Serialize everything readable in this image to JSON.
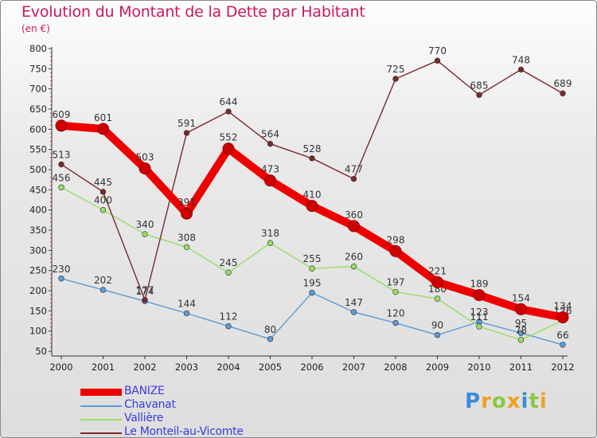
{
  "title": "Evolution du Montant de la Dette par Habitant",
  "unit_label": "(en €)",
  "brand": {
    "letters": [
      "P",
      "r",
      "o",
      "x",
      "i",
      "t",
      "i"
    ],
    "colors": [
      "#3a8ed8",
      "#f0a020",
      "#8cc63f",
      "#f0a020",
      "#3a8ed8",
      "#8cc63f",
      "#f0a020"
    ]
  },
  "chart_data": {
    "type": "line",
    "title": "Evolution du Montant de la Dette par Habitant",
    "ylabel": "(en €)",
    "xlabel": "",
    "x": [
      "2000",
      "2001",
      "2002",
      "2003",
      "2004",
      "2005",
      "2006",
      "2007",
      "2008",
      "2009",
      "2010",
      "2011",
      "2012"
    ],
    "ylim": [
      50,
      800
    ],
    "yticks": [
      50,
      100,
      150,
      200,
      250,
      300,
      350,
      400,
      450,
      500,
      550,
      600,
      650,
      700,
      750,
      800
    ],
    "grid": false,
    "legend_position": "bottom-left",
    "series": [
      {
        "name": "BANIZE",
        "color": "#ee0000",
        "emphasis": true,
        "values": [
          609,
          601,
          503,
          391,
          552,
          473,
          410,
          360,
          298,
          221,
          189,
          154,
          134
        ],
        "labels": [
          "609",
          "601",
          "503",
          "391",
          "552",
          "473",
          "410",
          "360",
          "298",
          "221",
          "189",
          "154",
          "134"
        ]
      },
      {
        "name": "Chavanat",
        "color": "#5b9bd5",
        "emphasis": false,
        "values": [
          230,
          202,
          174,
          144,
          112,
          80,
          195,
          147,
          120,
          90,
          123,
          95,
          66
        ],
        "labels": [
          "230",
          "202",
          "174",
          "144",
          "112",
          "80",
          "195",
          "147",
          "120",
          "90",
          "123",
          "95",
          "66"
        ]
      },
      {
        "name": "Vallière",
        "color": "#99dd66",
        "emphasis": false,
        "values": [
          456,
          400,
          340,
          308,
          245,
          318,
          255,
          260,
          197,
          180,
          111,
          78,
          126
        ],
        "labels": [
          "456",
          "400",
          "340",
          "308",
          "245",
          "318",
          "255",
          "260",
          "197",
          "180",
          "111",
          "78",
          "126"
        ]
      },
      {
        "name": "Le Monteil-au-Vicomte",
        "color": "#7a2a2a",
        "emphasis": false,
        "values": [
          513,
          445,
          177,
          591,
          644,
          564,
          528,
          477,
          725,
          770,
          685,
          748,
          689
        ],
        "labels": [
          "513",
          "445",
          "177",
          "591",
          "644",
          "564",
          "528",
          "477",
          "725",
          "770",
          "685",
          "748",
          "689"
        ]
      }
    ]
  }
}
